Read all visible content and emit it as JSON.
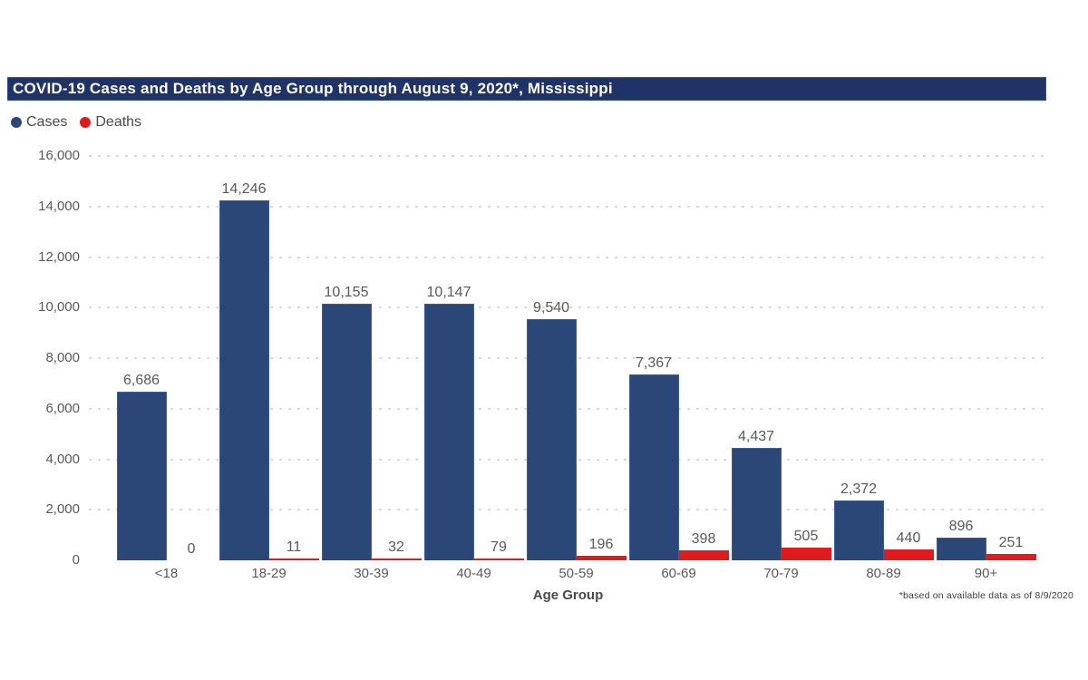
{
  "title": "COVID-19 Cases and Deaths by Age Group through August 9, 2020*, Mississippi",
  "colors": {
    "title_bar_bg": "#1f3366",
    "title_text": "#ffffff",
    "cases_bar": "#2b4778",
    "deaths_bar": "#e11a1e",
    "axis_text": "#595959",
    "gridline": "#d9d9d9"
  },
  "chart_data": {
    "type": "bar",
    "title": "COVID-19 Cases and Deaths by Age Group through August 9, 2020*, Mississippi",
    "categories": [
      "<18",
      "18-29",
      "30-39",
      "40-49",
      "50-59",
      "60-69",
      "70-79",
      "80-89",
      "90+"
    ],
    "series": [
      {
        "name": "Cases",
        "color": "#2b4778",
        "values": [
          6686,
          14246,
          10155,
          10147,
          9540,
          7367,
          4437,
          2372,
          896
        ],
        "labels": [
          "6,686",
          "14,246",
          "10,155",
          "10,147",
          "9,540",
          "7,367",
          "4,437",
          "2,372",
          "896"
        ]
      },
      {
        "name": "Deaths",
        "color": "#e11a1e",
        "values": [
          0,
          11,
          32,
          79,
          196,
          398,
          505,
          440,
          251
        ],
        "labels": [
          "0",
          "11",
          "32",
          "79",
          "196",
          "398",
          "505",
          "440",
          "251"
        ]
      }
    ],
    "xlabel": "Age Group",
    "ylabel": "",
    "ylim": [
      0,
      16000
    ],
    "yticks": [
      {
        "value": 0,
        "label": "0"
      },
      {
        "value": 2000,
        "label": "2,000"
      },
      {
        "value": 4000,
        "label": "4,000"
      },
      {
        "value": 6000,
        "label": "6,000"
      },
      {
        "value": 8000,
        "label": "8,000"
      },
      {
        "value": 10000,
        "label": "10,000"
      },
      {
        "value": 12000,
        "label": "12,000"
      },
      {
        "value": 14000,
        "label": "14,000"
      },
      {
        "value": 16000,
        "label": "16,000"
      }
    ],
    "grid": "horizontal-dotted",
    "legend_position": "top-left",
    "footnote": "*based on available data as of 8/9/2020"
  }
}
